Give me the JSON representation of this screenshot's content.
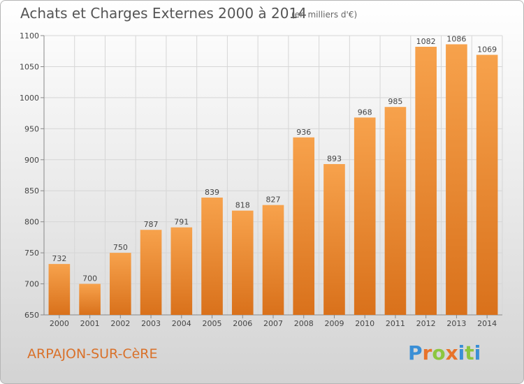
{
  "header": {
    "title": "Achats et Charges Externes 2000 à 2014",
    "subtitle": "(en milliers d'€)"
  },
  "footer": {
    "commune": "ARPAJON-SUR-CèRE",
    "logo_letters": [
      "P",
      "r",
      "o",
      "x",
      "i",
      "t",
      "i"
    ]
  },
  "colors": {
    "bar_light": "#f7a24c",
    "bar_dark": "#d9711b",
    "grid": "#d6d6d6",
    "commune": "#d9712a",
    "logo": [
      "#3a8fd6",
      "#e8732a",
      "#8cc63f",
      "#e8732a",
      "#3a8fd6",
      "#8cc63f",
      "#3a8fd6"
    ]
  },
  "chart_data": {
    "type": "bar",
    "categories": [
      "2000",
      "2001",
      "2002",
      "2003",
      "2004",
      "2005",
      "2006",
      "2007",
      "2008",
      "2009",
      "2010",
      "2011",
      "2012",
      "2013",
      "2014"
    ],
    "values": [
      732,
      700,
      750,
      787,
      791,
      839,
      818,
      827,
      936,
      893,
      968,
      985,
      1082,
      1086,
      1069
    ],
    "ylim": [
      650,
      1100
    ],
    "yticks": [
      650,
      700,
      750,
      800,
      850,
      900,
      950,
      1000,
      1050,
      1100
    ],
    "grid": true,
    "title": "Achats et Charges Externes 2000 à 2014",
    "subtitle": "(en milliers d'€)",
    "xlabel": "",
    "ylabel": ""
  }
}
